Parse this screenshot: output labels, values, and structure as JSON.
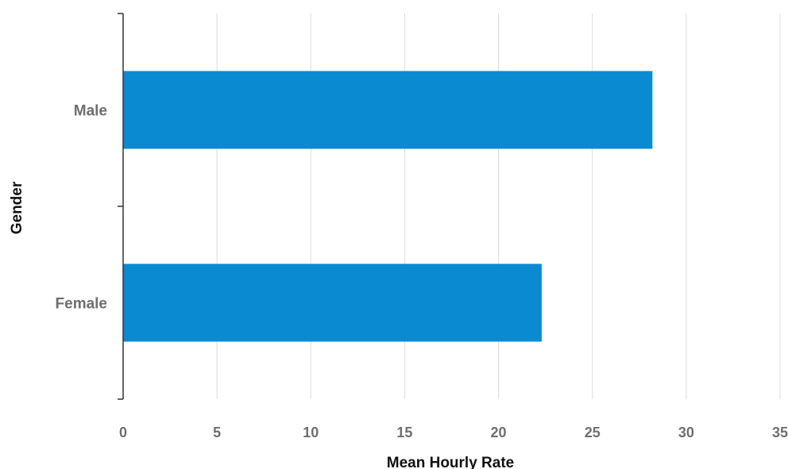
{
  "chart_data": {
    "type": "bar",
    "orientation": "horizontal",
    "categories": [
      "Male",
      "Female"
    ],
    "values": [
      28.2,
      22.3
    ],
    "title": "",
    "xlabel": "Mean Hourly Rate",
    "ylabel": "Gender",
    "xlim": [
      0,
      35
    ],
    "xticks": [
      "0",
      "5",
      "10",
      "15",
      "20",
      "25",
      "30",
      "35"
    ],
    "grid": "vertical",
    "legend": "none",
    "colors": {
      "bar": "#0a8bd1",
      "grid": "#dcdcdc",
      "axis": "#333333",
      "tick_label": "#6e6e6e",
      "axis_title": "#111111"
    }
  }
}
